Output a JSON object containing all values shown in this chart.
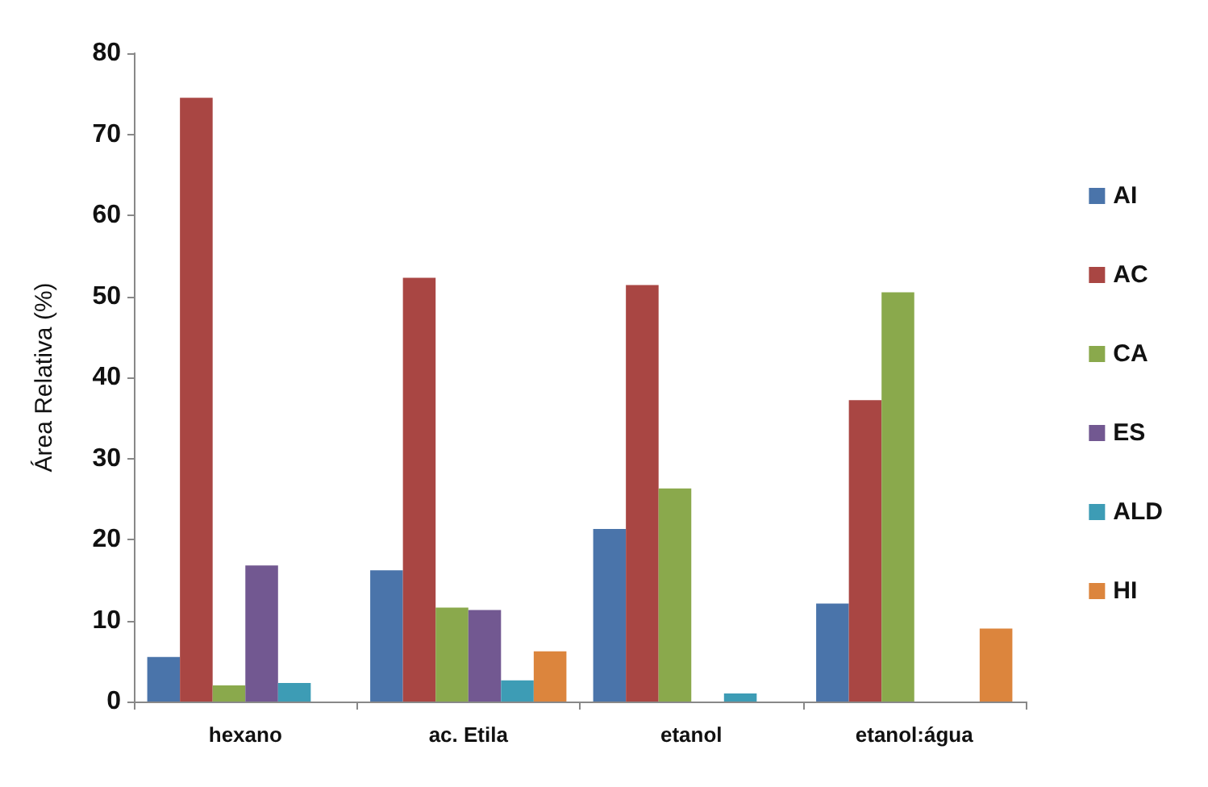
{
  "chart_data": {
    "type": "bar",
    "ylabel": "Área Relativa (%)",
    "categories": [
      "hexano",
      "ac. Etila",
      "etanol",
      "etanol:água"
    ],
    "series": [
      {
        "name": "AI",
        "color": "#4a74aa",
        "values": [
          5.5,
          16.2,
          21.3,
          12.1
        ]
      },
      {
        "name": "AC",
        "color": "#a94643",
        "values": [
          74.5,
          52.3,
          51.4,
          37.2
        ]
      },
      {
        "name": "CA",
        "color": "#8aa94c",
        "values": [
          2,
          11.6,
          26.3,
          50.5
        ]
      },
      {
        "name": "ES",
        "color": "#725891",
        "values": [
          16.8,
          11.3,
          null,
          null
        ]
      },
      {
        "name": "ALD",
        "color": "#3d9cb5",
        "values": [
          2.3,
          2.6,
          1,
          null
        ]
      },
      {
        "name": "HI",
        "color": "#dc853d",
        "values": [
          null,
          6.2,
          null,
          9
        ]
      }
    ],
    "ylim": [
      0,
      80
    ],
    "yticks": [
      0,
      10,
      20,
      30,
      40,
      50,
      60,
      70,
      80
    ],
    "grid": false,
    "legend": "right"
  }
}
